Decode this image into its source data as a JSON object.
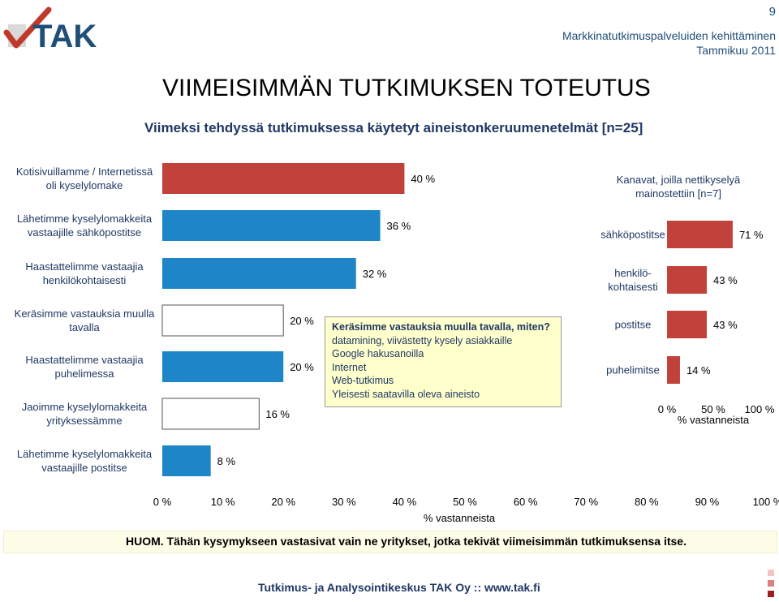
{
  "header": {
    "logo_text": "TAK",
    "page_number": "9",
    "line1": "Markkinatutkimuspalveluiden kehittäminen",
    "line2": "Tammikuu 2011"
  },
  "title": "VIIMEISIMMÄN TUTKIMUKSEN TOTEUTUS",
  "subtitle": "Viimeksi tehdyssä tutkimuksessa käytetyt aineistonkeruumenetelmät [n=25]",
  "colors": {
    "red": "#c0423a",
    "blue": "#1e86c8",
    "callout_bg": "#ffffcc",
    "accent": "#1f4e79"
  },
  "chart_data": [
    {
      "type": "bar",
      "orientation": "horizontal",
      "categories": [
        [
          "Kotisivuillamme / Internetissä",
          "oli kyselylomake"
        ],
        [
          "Lähetimme kyselylomakkeita",
          "vastaajille sähköpostitse"
        ],
        [
          "Haastattelimme vastaajia",
          "henkilökohtaisesti"
        ],
        [
          "Keräsimme vastauksia muulla",
          "tavalla"
        ],
        [
          "Haastattelimme vastaajia",
          "puhelimessa"
        ],
        [
          "Jaoimme kyselylomakkeita",
          "yrityksessämme"
        ],
        [
          "Lähetimme kyselylomakkeita",
          "vastaajille postitse"
        ]
      ],
      "values": [
        40,
        36,
        32,
        20,
        20,
        16,
        8
      ],
      "value_labels": [
        "40 %",
        "36 %",
        "32 %",
        "20 %",
        "20 %",
        "16 %",
        "8 %"
      ],
      "bar_colors": [
        "red",
        "blue",
        "blue",
        "white",
        "blue",
        "white",
        "blue"
      ],
      "xlim": [
        0,
        100
      ],
      "xticks": [
        "0 %",
        "10 %",
        "20 %",
        "30 %",
        "40 %",
        "50 %",
        "60 %",
        "70 %",
        "80 %",
        "90 %",
        "100 %"
      ],
      "xlabel": "% vastanneista"
    },
    {
      "type": "bar",
      "orientation": "horizontal",
      "title": [
        "Kanavat, joilla nettikyselyä",
        "mainostettiin [n=7]"
      ],
      "categories": [
        [
          "sähköpostitse"
        ],
        [
          "henkilö-",
          "kohtaisesti"
        ],
        [
          "postitse"
        ],
        [
          "puhelimitse"
        ]
      ],
      "values": [
        71,
        43,
        43,
        14
      ],
      "value_labels": [
        "71 %",
        "43 %",
        "43 %",
        "14 %"
      ],
      "bar_colors": [
        "red",
        "red",
        "red",
        "red"
      ],
      "xlim": [
        0,
        100
      ],
      "xticks": [
        "0 %",
        "50 %",
        "100 %"
      ],
      "xlabel": "% vastanneista"
    }
  ],
  "callout": {
    "title": "Keräsimme vastauksia muulla tavalla, miten?",
    "items": [
      "datamining, viivästetty kysely asiakkaille",
      "Google hakusanoilla",
      "Internet",
      "Web-tutkimus",
      "Yleisesti saatavilla oleva aineisto"
    ]
  },
  "note": "HUOM. Tähän kysymykseen vastasivat vain ne yritykset, jotka tekivät viimeisimmän tutkimuksensa itse.",
  "footer": "Tutkimus- ja Analysointikeskus TAK Oy :: www.tak.fi"
}
